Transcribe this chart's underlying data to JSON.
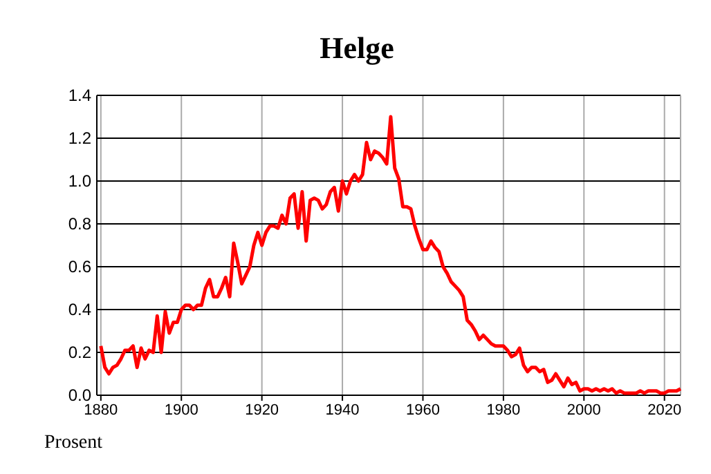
{
  "chart_data": {
    "type": "line",
    "title": "Helge",
    "ylabel": "Prosent",
    "x": [
      1880,
      1881,
      1882,
      1883,
      1884,
      1885,
      1886,
      1887,
      1888,
      1889,
      1890,
      1891,
      1892,
      1893,
      1894,
      1895,
      1896,
      1897,
      1898,
      1899,
      1900,
      1901,
      1902,
      1903,
      1904,
      1905,
      1906,
      1907,
      1908,
      1909,
      1910,
      1911,
      1912,
      1913,
      1914,
      1915,
      1916,
      1917,
      1918,
      1919,
      1920,
      1921,
      1922,
      1923,
      1924,
      1925,
      1926,
      1927,
      1928,
      1929,
      1930,
      1931,
      1932,
      1933,
      1934,
      1935,
      1936,
      1937,
      1938,
      1939,
      1940,
      1941,
      1942,
      1943,
      1944,
      1945,
      1946,
      1947,
      1948,
      1949,
      1950,
      1951,
      1952,
      1953,
      1954,
      1955,
      1956,
      1957,
      1958,
      1959,
      1960,
      1961,
      1962,
      1963,
      1964,
      1965,
      1966,
      1967,
      1968,
      1969,
      1970,
      1971,
      1972,
      1973,
      1974,
      1975,
      1976,
      1977,
      1978,
      1979,
      1980,
      1981,
      1982,
      1983,
      1984,
      1985,
      1986,
      1987,
      1988,
      1989,
      1990,
      1991,
      1992,
      1993,
      1994,
      1995,
      1996,
      1997,
      1998,
      1999,
      2000,
      2001,
      2002,
      2003,
      2004,
      2005,
      2006,
      2007,
      2008,
      2009,
      2010,
      2011,
      2012,
      2013,
      2014,
      2015,
      2016,
      2017,
      2018,
      2019,
      2020,
      2021,
      2022,
      2023,
      2024
    ],
    "series": [
      {
        "color": "#ff0000",
        "values": [
          0.23,
          0.13,
          0.1,
          0.13,
          0.14,
          0.17,
          0.21,
          0.21,
          0.23,
          0.13,
          0.22,
          0.17,
          0.21,
          0.2,
          0.37,
          0.2,
          0.39,
          0.29,
          0.34,
          0.34,
          0.4,
          0.42,
          0.42,
          0.4,
          0.42,
          0.42,
          0.5,
          0.54,
          0.46,
          0.46,
          0.5,
          0.55,
          0.46,
          0.71,
          0.62,
          0.52,
          0.56,
          0.6,
          0.7,
          0.76,
          0.7,
          0.76,
          0.79,
          0.79,
          0.78,
          0.84,
          0.8,
          0.92,
          0.94,
          0.78,
          0.95,
          0.72,
          0.91,
          0.92,
          0.91,
          0.87,
          0.89,
          0.95,
          0.97,
          0.86,
          1.0,
          0.94,
          1.0,
          1.03,
          1.0,
          1.03,
          1.18,
          1.1,
          1.14,
          1.13,
          1.11,
          1.08,
          1.3,
          1.06,
          1.01,
          0.88,
          0.88,
          0.87,
          0.79,
          0.73,
          0.68,
          0.68,
          0.72,
          0.69,
          0.67,
          0.6,
          0.57,
          0.53,
          0.51,
          0.49,
          0.46,
          0.35,
          0.33,
          0.3,
          0.26,
          0.28,
          0.26,
          0.24,
          0.23,
          0.23,
          0.23,
          0.21,
          0.18,
          0.19,
          0.22,
          0.14,
          0.11,
          0.13,
          0.13,
          0.11,
          0.12,
          0.06,
          0.07,
          0.1,
          0.07,
          0.04,
          0.08,
          0.05,
          0.06,
          0.02,
          0.03,
          0.03,
          0.02,
          0.03,
          0.02,
          0.03,
          0.02,
          0.03,
          0.01,
          0.02,
          0.01,
          0.01,
          0.01,
          0.01,
          0.02,
          0.01,
          0.02,
          0.02,
          0.02,
          0.01,
          0.01,
          0.02,
          0.02,
          0.02,
          0.03
        ]
      }
    ],
    "xlim": [
      1879,
      2024
    ],
    "xticks": [
      1880,
      1900,
      1920,
      1940,
      1960,
      1980,
      2000,
      2020
    ],
    "ylim": [
      0,
      1.4
    ],
    "yticks": [
      {
        "value": 0,
        "label": "0.0"
      },
      {
        "value": 0.2,
        "label": "0.2"
      },
      {
        "value": 0.4,
        "label": "0.4"
      },
      {
        "value": 0.6,
        "label": "0.6"
      },
      {
        "value": 0.8,
        "label": "0.8"
      },
      {
        "value": 1,
        "label": "1.0"
      },
      {
        "value": 1.2,
        "label": "1.2"
      },
      {
        "value": 1.4,
        "label": "1.4"
      }
    ],
    "grid": true,
    "marker": "none",
    "line_style": "solid"
  }
}
